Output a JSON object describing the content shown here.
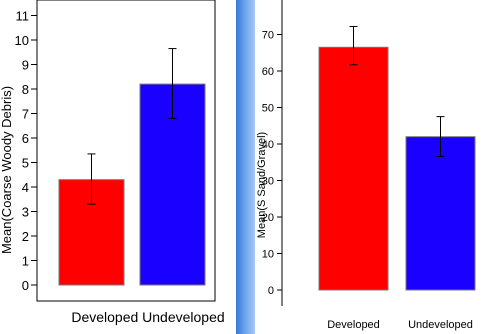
{
  "chart_data": [
    {
      "type": "bar",
      "categories": [
        "Developed",
        "Undeveloped"
      ],
      "values": [
        4.3,
        8.2
      ],
      "error_low": [
        3.3,
        6.8
      ],
      "error_high": [
        5.35,
        9.65
      ],
      "colors": [
        "#ff0000",
        "#1a00ff"
      ],
      "title": "",
      "xlabel": "",
      "xlabel_text": "Developed Undeveloped",
      "ylabel": "Mean(Coarse Woody Debris)",
      "yticks": [
        "0",
        "1",
        "2",
        "3",
        "4",
        "5",
        "6",
        "7",
        "8",
        "9",
        "10",
        "11"
      ],
      "ylim": [
        0,
        11
      ],
      "grid": false,
      "legend": "none"
    },
    {
      "type": "bar",
      "categories": [
        "Developed",
        "Undeveloped"
      ],
      "values": [
        66.5,
        42.0
      ],
      "error_low": [
        61.7,
        36.6
      ],
      "error_high": [
        72.2,
        47.5
      ],
      "colors": [
        "#ff0000",
        "#1a00ff"
      ],
      "title": "",
      "xlabel": "",
      "ylabel": "Mean(S Sand/Gravel)",
      "yticks": [
        "0",
        "10",
        "20",
        "30",
        "40",
        "50",
        "60",
        "70"
      ],
      "ylim": [
        0,
        80
      ],
      "grid": false,
      "legend": "none"
    }
  ]
}
